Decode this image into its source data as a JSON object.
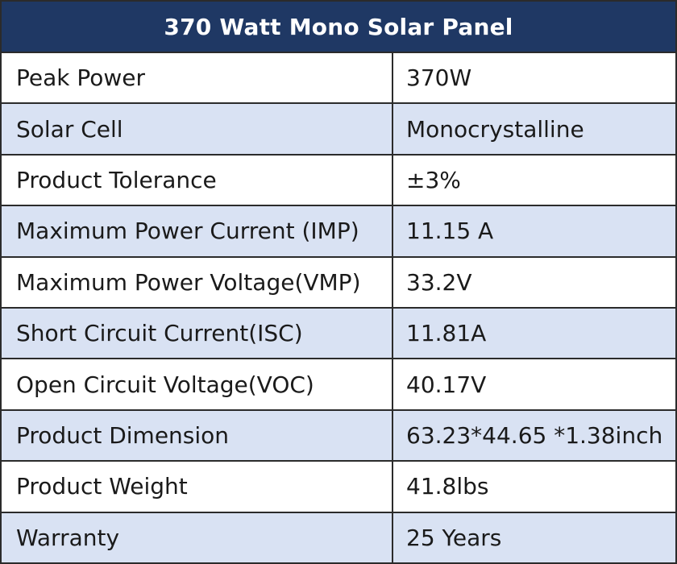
{
  "table": {
    "title": "370 Watt Mono Solar Panel",
    "header_color": "#1f3864",
    "alt_row_color": "#d9e2f3",
    "rows": [
      {
        "label": "Peak Power",
        "value": "370W"
      },
      {
        "label": "Solar Cell",
        "value": "Monocrystalline"
      },
      {
        "label": "Product Tolerance",
        "value": "±3%"
      },
      {
        "label": "Maximum Power Current (IMP)",
        "value": "11.15 A"
      },
      {
        "label": "Maximum Power Voltage(VMP)",
        "value": "33.2V"
      },
      {
        "label": "Short Circuit Current(ISC)",
        "value": "11.81A"
      },
      {
        "label": "Open Circuit Voltage(VOC)",
        "value": "40.17V"
      },
      {
        "label": "Product Dimension",
        "value": "63.23*44.65 *1.38inch"
      },
      {
        "label": "Product Weight",
        "value": "41.8lbs"
      },
      {
        "label": "Warranty",
        "value": "25 Years"
      }
    ]
  }
}
